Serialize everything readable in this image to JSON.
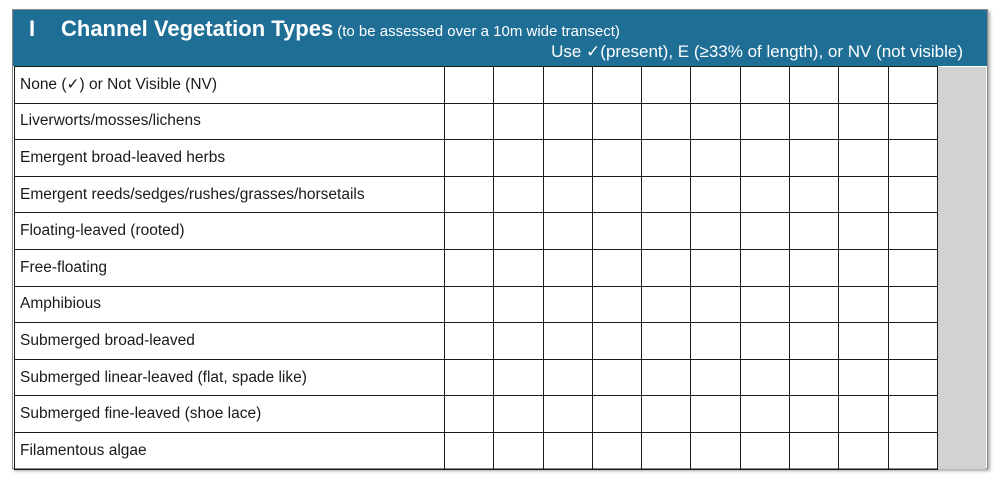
{
  "header": {
    "section": "I",
    "title": "Channel Vegetation Types",
    "subtitle": "(to be assessed over a 10m wide transect)",
    "instruction": "Use ✓(present), E (≥33% of length), or NV (not visible)"
  },
  "rows": [
    "None (✓) or Not Visible (NV)",
    "Liverworts/mosses/lichens",
    "Emergent broad-leaved herbs",
    "Emergent reeds/sedges/rushes/grasses/horsetails",
    "Floating-leaved (rooted)",
    "Free-floating",
    "Amphibious",
    "Submerged broad-leaved",
    "Submerged linear-leaved (flat, spade like)",
    "Submerged fine-leaved (shoe lace)",
    "Filamentous algae"
  ],
  "entry_columns": 10,
  "colors": {
    "header_bg": "#1f6e96",
    "shaded_column": "#d2d2d2"
  }
}
